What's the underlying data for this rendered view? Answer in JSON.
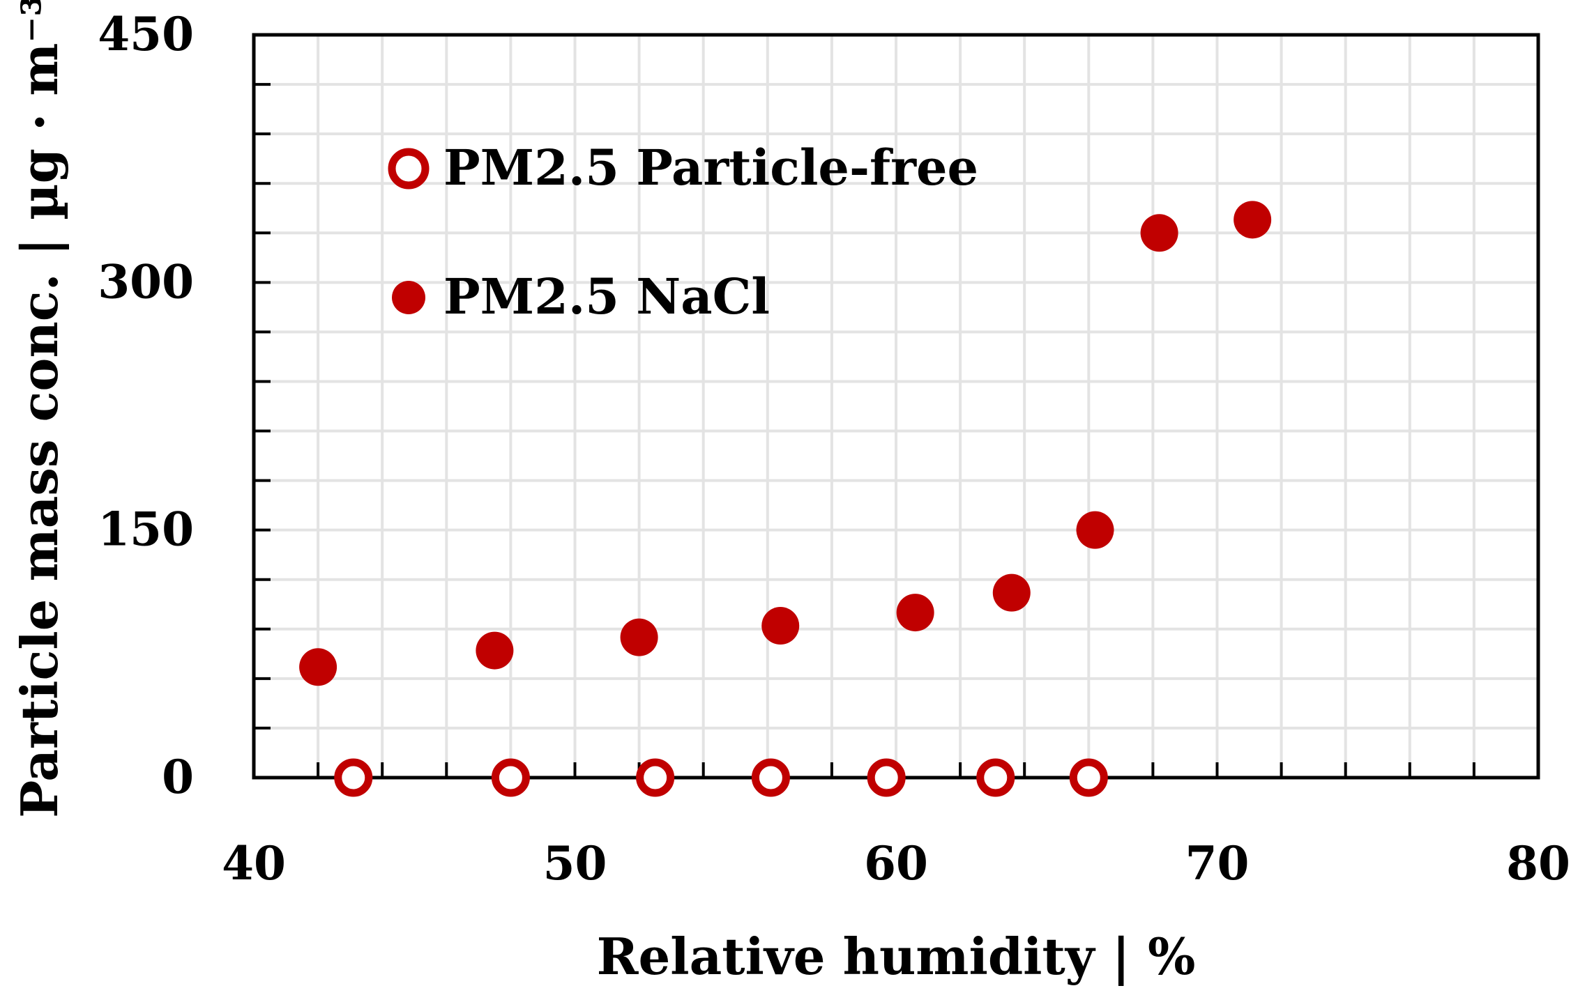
{
  "chart_data": {
    "type": "scatter",
    "title": "",
    "xlabel": "Relative humidity | %",
    "ylabel": "Particle mass conc. | µg · m⁻³",
    "xlim": [
      40,
      80
    ],
    "ylim": [
      0,
      450
    ],
    "x_ticks": [
      40,
      50,
      60,
      70,
      80
    ],
    "y_ticks": [
      0,
      150,
      300,
      450
    ],
    "x_tick_labels": [
      "40",
      "50",
      "60",
      "70",
      "80"
    ],
    "y_tick_labels": [
      "0",
      "150",
      "300",
      "450"
    ],
    "grid": true,
    "legend_position": "top-left",
    "series": [
      {
        "name": "PM2.5 Particle-free",
        "marker": "open-circle",
        "color": "#c00000",
        "x": [
          43.1,
          48.0,
          52.5,
          56.1,
          59.7,
          63.1,
          66.0
        ],
        "y": [
          0,
          0,
          0,
          0,
          0,
          0,
          0
        ]
      },
      {
        "name": "PM2.5 NaCl",
        "marker": "filled-circle",
        "color": "#c00000",
        "x": [
          42.0,
          47.5,
          52.0,
          56.4,
          60.6,
          63.6,
          66.2,
          68.2,
          71.1
        ],
        "y": [
          67,
          77,
          85,
          92,
          100,
          112,
          150,
          330,
          338
        ]
      }
    ]
  }
}
